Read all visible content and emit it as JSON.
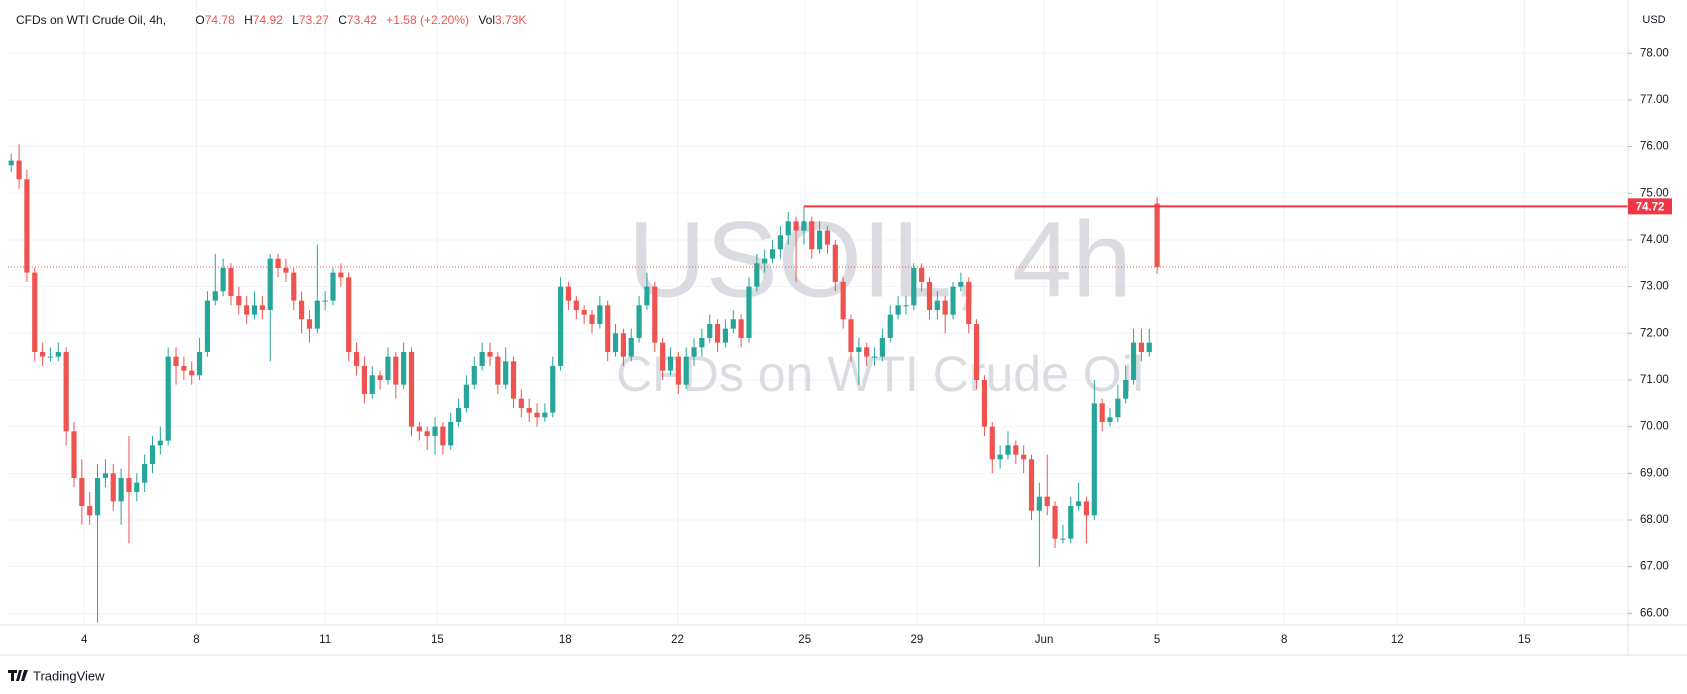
{
  "chart_data": {
    "type": "candlestick",
    "header": {
      "symbol": "CFDs on WTI Crude Oil, 4h,",
      "labels": [
        "O",
        "H",
        "L",
        "C"
      ],
      "change": "+1.58 (+2.20%)",
      "volume_label": "Vol",
      "volume": "3.73K"
    },
    "watermark": "USOIL, 4h",
    "watermark_sub": "CFDs on WTI Crude Oil",
    "currency": "USD",
    "brand": "TradingView",
    "up_color": "#26a69a",
    "down_color": "#ef5350",
    "grid": true,
    "price_line": 74.72,
    "x": [
      0,
      1,
      2,
      3,
      4,
      5,
      6,
      7,
      8,
      9,
      10,
      11,
      12,
      13,
      14,
      15,
      16,
      17,
      18,
      19,
      20,
      21,
      22,
      23,
      24,
      25,
      26,
      27,
      28,
      29,
      30,
      31,
      32,
      33,
      34,
      35,
      36,
      37,
      38,
      39,
      40,
      41,
      42,
      43,
      44,
      45,
      46,
      47,
      48,
      49,
      50,
      51,
      52,
      53,
      54,
      55,
      56,
      57,
      58,
      59,
      60,
      61,
      62,
      63,
      64,
      65,
      66,
      67,
      68,
      69,
      70,
      71,
      72,
      73,
      74,
      75,
      76,
      77,
      78,
      79,
      80,
      81,
      82,
      83,
      84,
      85,
      86,
      87,
      88,
      89,
      90,
      91,
      92,
      93,
      94,
      95,
      96,
      97,
      98,
      99,
      100,
      101,
      102,
      103,
      104,
      105,
      106,
      107,
      108,
      109,
      110,
      111,
      112,
      113,
      114,
      115,
      116,
      117,
      118,
      119,
      120,
      121,
      122,
      123,
      124,
      125,
      126,
      127,
      128,
      129,
      130,
      131,
      132,
      133,
      134,
      135,
      136,
      137,
      138,
      139,
      140,
      141,
      142,
      143,
      144,
      145,
      146
    ],
    "candles": [
      [
        75.6,
        75.85,
        75.45,
        75.7
      ],
      [
        75.7,
        76.05,
        75.1,
        75.3
      ],
      [
        75.3,
        75.5,
        73.1,
        73.3
      ],
      [
        73.3,
        73.4,
        71.4,
        71.6
      ],
      [
        71.6,
        71.8,
        71.3,
        71.5
      ],
      [
        71.5,
        71.7,
        71.4,
        71.5
      ],
      [
        71.5,
        71.8,
        71.4,
        71.6
      ],
      [
        71.6,
        71.7,
        69.6,
        69.9
      ],
      [
        69.9,
        70.1,
        68.7,
        68.9
      ],
      [
        68.9,
        69.3,
        67.9,
        68.3
      ],
      [
        68.3,
        68.6,
        67.9,
        68.1
      ],
      [
        68.1,
        69.2,
        65.8,
        68.9
      ],
      [
        68.9,
        69.3,
        68.7,
        69.0
      ],
      [
        69.0,
        69.2,
        68.2,
        68.4
      ],
      [
        68.4,
        69.1,
        67.9,
        68.9
      ],
      [
        68.9,
        69.8,
        67.5,
        68.6
      ],
      [
        68.6,
        69.0,
        68.4,
        68.8
      ],
      [
        68.8,
        69.4,
        68.6,
        69.2
      ],
      [
        69.2,
        69.8,
        69.0,
        69.6
      ],
      [
        69.6,
        70.0,
        69.4,
        69.7
      ],
      [
        69.7,
        71.7,
        69.6,
        71.5
      ],
      [
        71.5,
        71.7,
        70.9,
        71.3
      ],
      [
        71.3,
        71.5,
        71.0,
        71.2
      ],
      [
        71.2,
        71.4,
        70.9,
        71.1
      ],
      [
        71.1,
        71.9,
        71.0,
        71.6
      ],
      [
        71.6,
        72.9,
        71.5,
        72.7
      ],
      [
        72.7,
        73.7,
        72.6,
        72.9
      ],
      [
        72.9,
        73.6,
        72.8,
        73.4
      ],
      [
        73.4,
        73.5,
        72.6,
        72.8
      ],
      [
        72.8,
        73.0,
        72.4,
        72.6
      ],
      [
        72.6,
        72.8,
        72.2,
        72.4
      ],
      [
        72.4,
        72.9,
        72.3,
        72.6
      ],
      [
        72.6,
        72.8,
        72.3,
        72.5
      ],
      [
        72.5,
        73.7,
        71.4,
        73.6
      ],
      [
        73.6,
        73.7,
        73.2,
        73.4
      ],
      [
        73.4,
        73.6,
        73.1,
        73.3
      ],
      [
        73.3,
        73.4,
        72.5,
        72.7
      ],
      [
        72.7,
        72.9,
        72.0,
        72.3
      ],
      [
        72.3,
        72.5,
        71.8,
        72.1
      ],
      [
        72.1,
        73.9,
        72.0,
        72.7
      ],
      [
        72.7,
        72.9,
        72.5,
        72.7
      ],
      [
        72.7,
        73.4,
        72.6,
        73.3
      ],
      [
        73.3,
        73.5,
        73.0,
        73.2
      ],
      [
        73.2,
        73.3,
        71.4,
        71.6
      ],
      [
        71.6,
        71.8,
        71.1,
        71.3
      ],
      [
        71.3,
        71.5,
        70.5,
        70.7
      ],
      [
        70.7,
        71.3,
        70.6,
        71.1
      ],
      [
        71.1,
        71.2,
        70.8,
        71.0
      ],
      [
        71.0,
        71.7,
        70.9,
        71.5
      ],
      [
        71.5,
        71.6,
        70.6,
        70.9
      ],
      [
        70.9,
        71.8,
        70.8,
        71.6
      ],
      [
        71.6,
        71.7,
        69.8,
        70.0
      ],
      [
        70.0,
        70.1,
        69.7,
        69.9
      ],
      [
        69.9,
        70.0,
        69.5,
        69.8
      ],
      [
        69.8,
        70.2,
        69.4,
        70.0
      ],
      [
        70.0,
        70.1,
        69.4,
        69.6
      ],
      [
        69.6,
        70.3,
        69.5,
        70.1
      ],
      [
        70.1,
        70.6,
        70.0,
        70.4
      ],
      [
        70.4,
        71.1,
        70.3,
        70.9
      ],
      [
        70.9,
        71.5,
        70.8,
        71.3
      ],
      [
        71.3,
        71.8,
        71.2,
        71.6
      ],
      [
        71.6,
        71.8,
        71.3,
        71.5
      ],
      [
        71.5,
        71.6,
        70.7,
        70.9
      ],
      [
        70.9,
        71.7,
        70.8,
        71.4
      ],
      [
        71.4,
        71.5,
        70.4,
        70.6
      ],
      [
        70.6,
        70.8,
        70.2,
        70.4
      ],
      [
        70.4,
        70.6,
        70.1,
        70.3
      ],
      [
        70.3,
        70.5,
        70.0,
        70.2
      ],
      [
        70.2,
        70.5,
        70.1,
        70.3
      ],
      [
        70.3,
        71.5,
        70.2,
        71.3
      ],
      [
        71.3,
        73.2,
        71.2,
        73.0
      ],
      [
        73.0,
        73.1,
        72.5,
        72.7
      ],
      [
        72.7,
        72.8,
        72.3,
        72.5
      ],
      [
        72.5,
        72.6,
        72.2,
        72.4
      ],
      [
        72.4,
        72.5,
        72.0,
        72.2
      ],
      [
        72.2,
        72.8,
        72.1,
        72.6
      ],
      [
        72.6,
        72.7,
        71.4,
        71.6
      ],
      [
        71.6,
        72.2,
        71.5,
        72.0
      ],
      [
        72.0,
        72.1,
        71.3,
        71.5
      ],
      [
        71.5,
        72.1,
        71.4,
        71.9
      ],
      [
        71.9,
        72.8,
        71.8,
        72.6
      ],
      [
        72.6,
        73.3,
        72.5,
        73.0
      ],
      [
        73.0,
        73.1,
        71.6,
        71.8
      ],
      [
        71.8,
        71.9,
        71.0,
        71.2
      ],
      [
        71.2,
        71.7,
        71.1,
        71.5
      ],
      [
        71.5,
        71.6,
        70.7,
        70.9
      ],
      [
        70.9,
        71.7,
        70.8,
        71.5
      ],
      [
        71.5,
        71.9,
        71.3,
        71.7
      ],
      [
        71.7,
        72.1,
        71.5,
        71.9
      ],
      [
        71.9,
        72.4,
        71.8,
        72.2
      ],
      [
        72.2,
        72.3,
        71.6,
        71.8
      ],
      [
        71.8,
        72.3,
        71.7,
        72.1
      ],
      [
        72.1,
        72.5,
        72.0,
        72.3
      ],
      [
        72.3,
        72.4,
        71.7,
        71.9
      ],
      [
        71.9,
        73.2,
        71.8,
        73.0
      ],
      [
        73.0,
        73.7,
        72.9,
        73.5
      ],
      [
        73.5,
        73.8,
        73.3,
        73.6
      ],
      [
        73.6,
        74.0,
        73.5,
        73.8
      ],
      [
        73.8,
        74.3,
        73.6,
        74.1
      ],
      [
        74.1,
        74.6,
        73.9,
        74.4
      ],
      [
        74.4,
        74.5,
        73.1,
        74.2
      ],
      [
        74.2,
        74.72,
        73.9,
        74.4
      ],
      [
        74.4,
        74.5,
        73.6,
        73.8
      ],
      [
        73.8,
        74.4,
        73.7,
        74.2
      ],
      [
        74.2,
        74.3,
        73.7,
        73.9
      ],
      [
        73.9,
        74.0,
        72.9,
        73.1
      ],
      [
        73.1,
        73.2,
        72.1,
        72.3
      ],
      [
        72.3,
        72.4,
        71.4,
        71.6
      ],
      [
        71.6,
        71.9,
        70.9,
        71.7
      ],
      [
        71.7,
        71.8,
        71.3,
        71.5
      ],
      [
        71.5,
        71.7,
        71.3,
        71.5
      ],
      [
        71.5,
        72.1,
        71.4,
        71.9
      ],
      [
        71.9,
        72.6,
        71.8,
        72.4
      ],
      [
        72.4,
        72.8,
        72.3,
        72.6
      ],
      [
        72.6,
        72.8,
        72.4,
        72.6
      ],
      [
        72.6,
        73.5,
        72.5,
        73.4
      ],
      [
        73.4,
        73.5,
        72.9,
        73.1
      ],
      [
        73.1,
        73.2,
        72.3,
        72.5
      ],
      [
        72.5,
        72.9,
        72.3,
        72.7
      ],
      [
        72.7,
        72.8,
        72.0,
        72.4
      ],
      [
        72.4,
        73.1,
        72.3,
        73.0
      ],
      [
        73.0,
        73.3,
        72.9,
        73.1
      ],
      [
        73.1,
        73.2,
        72.0,
        72.2
      ],
      [
        72.2,
        72.3,
        70.8,
        71.0
      ],
      [
        71.0,
        71.1,
        69.8,
        70.0
      ],
      [
        70.0,
        70.1,
        69.0,
        69.3
      ],
      [
        69.3,
        69.6,
        69.1,
        69.4
      ],
      [
        69.4,
        69.9,
        69.3,
        69.6
      ],
      [
        69.6,
        69.7,
        69.2,
        69.4
      ],
      [
        69.4,
        69.6,
        69.0,
        69.3
      ],
      [
        69.3,
        69.4,
        68.0,
        68.2
      ],
      [
        68.2,
        68.8,
        67.0,
        68.5
      ],
      [
        68.5,
        69.4,
        68.1,
        68.3
      ],
      [
        68.3,
        68.4,
        67.4,
        67.6
      ],
      [
        67.6,
        67.9,
        67.5,
        67.6
      ],
      [
        67.6,
        68.5,
        67.5,
        68.3
      ],
      [
        68.3,
        68.8,
        68.2,
        68.4
      ],
      [
        68.4,
        68.5,
        67.5,
        68.1
      ],
      [
        68.1,
        71.0,
        68.0,
        70.5
      ],
      [
        70.5,
        70.6,
        69.9,
        70.1
      ],
      [
        70.1,
        70.4,
        70.0,
        70.2
      ],
      [
        70.2,
        70.9,
        70.1,
        70.6
      ],
      [
        70.6,
        71.3,
        70.5,
        71.0
      ],
      [
        71.0,
        72.1,
        70.9,
        71.8
      ],
      [
        71.8,
        72.1,
        71.4,
        71.6
      ],
      [
        71.6,
        72.1,
        71.5,
        71.8
      ],
      [
        74.78,
        74.92,
        73.27,
        73.42
      ]
    ],
    "xlim": [
      -0.41,
      206.0
    ],
    "xticks": [
      {
        "value": 9.3,
        "label": "4"
      },
      {
        "value": 23.6,
        "label": "8"
      },
      {
        "value": 40.0,
        "label": "11"
      },
      {
        "value": 54.3,
        "label": "15"
      },
      {
        "value": 70.6,
        "label": "18"
      },
      {
        "value": 84.9,
        "label": "22"
      },
      {
        "value": 101.1,
        "label": "25"
      },
      {
        "value": 115.4,
        "label": "29"
      },
      {
        "value": 131.6,
        "label": "Jun"
      },
      {
        "value": 146.0,
        "label": "5"
      },
      {
        "value": 162.2,
        "label": "8"
      },
      {
        "value": 176.6,
        "label": "12"
      },
      {
        "value": 192.8,
        "label": "15"
      }
    ],
    "ylim": [
      65.75,
      78.97
    ],
    "yticks": [
      {
        "value": 66,
        "label": "66.00"
      },
      {
        "value": 67,
        "label": "67.00"
      },
      {
        "value": 68,
        "label": "68.00"
      },
      {
        "value": 69,
        "label": "69.00"
      },
      {
        "value": 70,
        "label": "70.00"
      },
      {
        "value": 71,
        "label": "71.00"
      },
      {
        "value": 72,
        "label": "72.00"
      },
      {
        "value": 73,
        "label": "73.00"
      },
      {
        "value": 74,
        "label": "74.00"
      },
      {
        "value": 75,
        "label": "75.00"
      },
      {
        "value": 76,
        "label": "76.00"
      },
      {
        "value": 77,
        "label": "77.00"
      },
      {
        "value": 78,
        "label": "78.00"
      }
    ]
  }
}
